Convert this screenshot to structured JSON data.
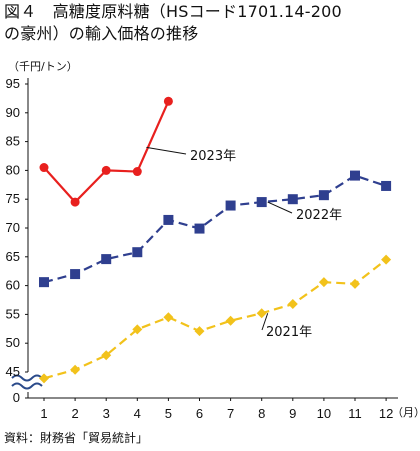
{
  "figure": {
    "title_line1": "図４　高糖度原料糖（HSコード1701.14-200",
    "title_line2": "の豪州）の輸入価格の推移",
    "source": "資料：財務省「貿易統計」"
  },
  "chart_data": {
    "type": "line",
    "ylabel": "（千円/トン）",
    "xunit": "（月）",
    "categories": [
      "1",
      "2",
      "3",
      "4",
      "5",
      "6",
      "7",
      "8",
      "9",
      "10",
      "11",
      "12"
    ],
    "yticks": [
      "95",
      "90",
      "85",
      "80",
      "75",
      "70",
      "65",
      "60",
      "55",
      "50",
      "45",
      "0"
    ],
    "ylim": [
      40,
      95
    ],
    "y_axis_break": true,
    "grid": false,
    "series": [
      {
        "name": "2023年",
        "color": "#e8201e",
        "marker": "circle",
        "dash": "solid",
        "values": [
          80.5,
          74.5,
          80.0,
          79.8,
          92.0,
          null,
          null,
          null,
          null,
          null,
          null,
          null
        ]
      },
      {
        "name": "2022年",
        "color": "#2f3f8f",
        "marker": "square",
        "dash": "dashed",
        "values": [
          60.6,
          62.0,
          64.6,
          65.8,
          71.4,
          69.9,
          73.9,
          74.5,
          75.0,
          75.7,
          79.1,
          77.3
        ]
      },
      {
        "name": "2021年",
        "color": "#f2c21b",
        "marker": "diamond",
        "dash": "dashed",
        "values": [
          43.9,
          45.4,
          47.9,
          52.4,
          54.5,
          52.1,
          53.9,
          55.2,
          56.8,
          60.6,
          60.3,
          64.5
        ]
      }
    ]
  }
}
